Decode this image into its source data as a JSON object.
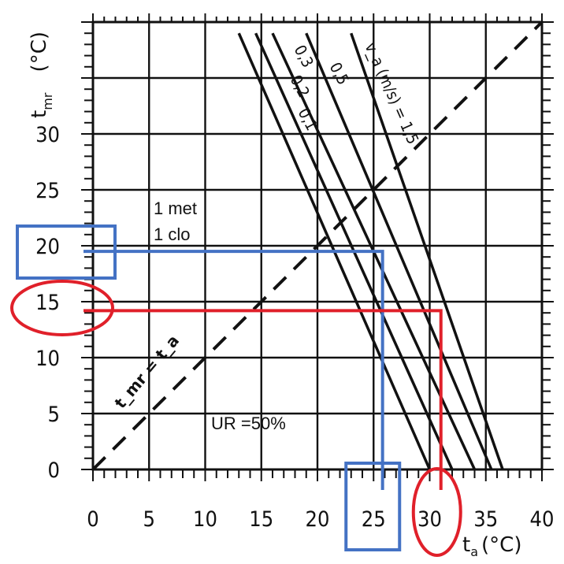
{
  "chart_data": {
    "type": "line",
    "x_axis": {
      "ticks": [
        "0",
        "5",
        "10",
        "15",
        "20",
        "25",
        "30",
        "35",
        "40"
      ],
      "label": "t",
      "label_subscript": "a",
      "unit": "(°C)",
      "range": [
        0,
        40
      ]
    },
    "y_axis": {
      "ticks": [
        "0",
        "5",
        "10",
        "15",
        "20",
        "25",
        "30"
      ],
      "label": "t",
      "label_subscript": "mr",
      "unit": "(°C)",
      "range": [
        0,
        40
      ]
    },
    "grid": true,
    "series": [
      {
        "name": "0,1",
        "x": [
          13,
          30
        ],
        "y": [
          39,
          0
        ]
      },
      {
        "name": "0,2",
        "x": [
          14.5,
          32
        ],
        "y": [
          39,
          0
        ]
      },
      {
        "name": "0,3",
        "x": [
          16,
          34
        ],
        "y": [
          39,
          0
        ]
      },
      {
        "name": "0,5",
        "x": [
          19,
          35.5
        ],
        "y": [
          39,
          0
        ]
      },
      {
        "name": "v_a (m/s) = 1,5",
        "x": [
          23,
          36.5
        ],
        "y": [
          39,
          0
        ]
      }
    ],
    "reference_line": {
      "label": "t_mr = t_a",
      "x": [
        0,
        40
      ],
      "y": [
        0,
        40
      ]
    },
    "annotations": {
      "metabolism": "1 met",
      "clothing": "1 clo",
      "humidity": "UR =50%"
    },
    "highlights": [
      {
        "color": "#4472c4",
        "x": 25.8,
        "y": 19.5,
        "x_label": "25",
        "y_label": "20"
      },
      {
        "color": "#e0202a",
        "x": 31,
        "y": 14.2,
        "x_label": "30",
        "y_label": "15"
      }
    ]
  }
}
